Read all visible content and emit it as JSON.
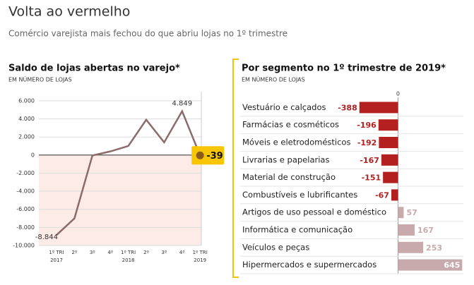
{
  "title": "Volta ao vermelho",
  "subtitle": "Comércio varejista mais fechou do que abriu lojas no 1º trimestre",
  "chart_data": [
    {
      "type": "line",
      "title": "Saldo de lojas abertas no varejo*",
      "subtitle": "EM NÚMERO DE LOJAS",
      "categories": [
        "1º TRI 2017",
        "2º",
        "3º",
        "4º",
        "1º TRI 2018",
        "2º",
        "3º",
        "4º",
        "1º TRI 2019"
      ],
      "series": [
        {
          "name": "Saldo",
          "color": "#8c6b6b",
          "values": [
            -8844,
            -7000,
            -50,
            400,
            1000,
            3900,
            1400,
            4849,
            -39
          ],
          "value_labels": [
            "-8.844",
            null,
            null,
            null,
            null,
            null,
            null,
            "4.849",
            "-39"
          ]
        }
      ],
      "ylim": [
        -10000,
        7000
      ],
      "yticks": [
        {
          "value": 6000,
          "label": "6.000"
        },
        {
          "value": 4000,
          "label": "4.000"
        },
        {
          "value": 2000,
          "label": "2.000"
        },
        0,
        {
          "value": -2000,
          "label": "-2.000"
        },
        {
          "value": -4000,
          "label": "-4.000"
        },
        {
          "value": -6000,
          "label": "-6.000"
        },
        {
          "value": -8000,
          "label": "-8.000"
        },
        {
          "value": -10000,
          "label": "-10.000"
        }
      ],
      "grid": true
    },
    {
      "type": "hbar",
      "title": "Por segmento no 1º trimestre de 2019*",
      "subtitle": "EM NÚMERO DE LOJAS",
      "categories": [
        "Vestuário e calçados",
        "Farmácias e cosméticos",
        "Móveis e eletrodomésticos",
        "Livrarias e papelarias",
        "Material de construção",
        "Combustíveis e lubrificantes",
        "Artigos de uso pessoal e doméstico",
        "Informática e comunicação",
        "Veículos e peças",
        "Hipermercados e supermercados"
      ],
      "values": [
        -388,
        -196,
        -192,
        -167,
        -151,
        -67,
        57,
        167,
        253,
        645
      ],
      "negative_color": "#b3201f",
      "positive_color": "#c8aaac",
      "xlim": [
        -450,
        650
      ],
      "xticks": [
        0
      ]
    }
  ]
}
